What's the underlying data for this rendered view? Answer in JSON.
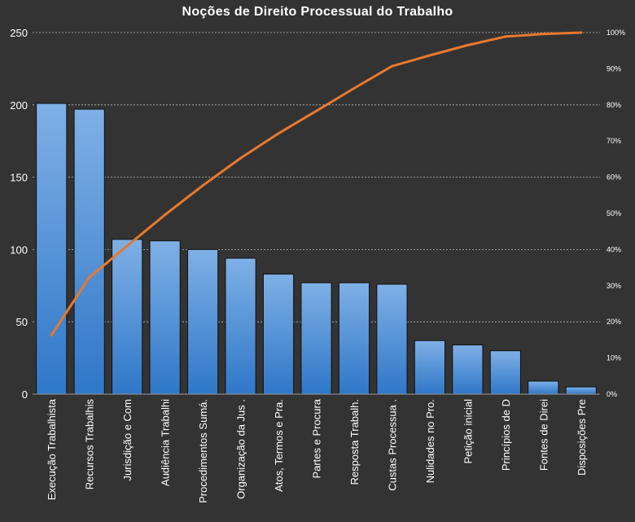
{
  "chart_data": {
    "type": "bar",
    "title": "Noções de Direito  Processual  do Trabalho",
    "categories": [
      "Execução Trabalhista",
      "Recursos Trabalhis",
      "Jurisdição e Com",
      "Audiência Trabalhi",
      "Procedimentos  Sumá.",
      "Organização da Jus .",
      "Atos, Termos e Pra.",
      "Partes e Procura",
      "Resposta Trabalh.",
      "Custas Processua .",
      "Nulidades no Pro.",
      "Petição inicial",
      "Princípios de D",
      "Fontes de Direi",
      "Disposições Pre"
    ],
    "series": [
      {
        "values": [
          201,
          197,
          107,
          106,
          100,
          94,
          83,
          77,
          77,
          76,
          37,
          34,
          30,
          9,
          5
        ]
      },
      {
        "axis": "right",
        "values": [
          0.163,
          0.323,
          0.41,
          0.496,
          0.577,
          0.653,
          0.721,
          0.783,
          0.846,
          0.907,
          0.937,
          0.965,
          0.989,
          0.996,
          1.0
        ]
      }
    ],
    "y_left": {
      "ylim": [
        0,
        250
      ],
      "ticks": [
        "0",
        "50",
        "100",
        "150",
        "200",
        "250"
      ]
    },
    "y_right": {
      "ylim": [
        0,
        1
      ],
      "ticks": [
        "0%",
        "10%",
        "20%",
        "30%",
        "40%",
        "50%",
        "60%",
        "70%",
        "80%",
        "90%",
        "100%"
      ]
    },
    "grid": true,
    "legend": "none",
    "colors": {
      "background": "#333333",
      "bar_fill_top": "#7FB0E6",
      "bar_fill_bottom": "#2F77C8",
      "bar_stroke": "#111111",
      "line": "#E8782E",
      "grid": "#BBBBBB",
      "text": "#FFFFFF"
    }
  }
}
